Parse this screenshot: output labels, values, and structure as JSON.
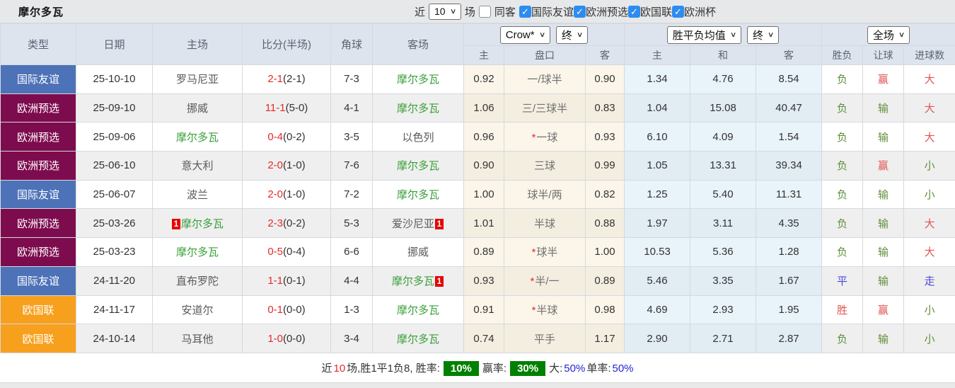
{
  "page": {
    "title": "摩尔多瓦"
  },
  "toolbar": {
    "near_label": "近",
    "near_select": "10",
    "games_label": "场",
    "same_away_label": "同客",
    "same_away_checked": false,
    "filters": [
      {
        "label": "国际友谊",
        "checked": true
      },
      {
        "label": "欧洲预选",
        "checked": true
      },
      {
        "label": "欧国联",
        "checked": true
      },
      {
        "label": "欧洲杯",
        "checked": true
      }
    ]
  },
  "table": {
    "headers": {
      "type": "类型",
      "date": "日期",
      "home": "主场",
      "score": "比分(半场)",
      "corner": "角球",
      "away": "客场",
      "ah_home": "主",
      "ah_line": "盘口",
      "ah_away": "客",
      "win": "主",
      "draw": "和",
      "lose": "客",
      "result": "胜负",
      "handicap_result": "让球",
      "goals": "进球数"
    },
    "selects": {
      "company": "Crow*",
      "company_period": "终",
      "avg": "胜平负均值",
      "avg_period": "终",
      "scope": "全场"
    },
    "rows": [
      {
        "type": "国际友谊",
        "date": "25-10-10",
        "home": "罗马尼亚",
        "home_green": false,
        "home_card": "",
        "score": "2-1",
        "half": "(2-1)",
        "corner": "7-3",
        "away": "摩尔多瓦",
        "away_green": true,
        "away_card": "",
        "ah_home": "0.92",
        "ah_star": false,
        "ah_line": "一/球半",
        "ah_away": "0.90",
        "w": "1.34",
        "d": "4.76",
        "l": "8.54",
        "res": "负",
        "res_c": "g",
        "hres": "赢",
        "hres_c": "r",
        "gres": "大",
        "gres_c": "r"
      },
      {
        "type": "欧洲预选",
        "date": "25-09-10",
        "home": "挪威",
        "home_green": false,
        "home_card": "",
        "score": "11-1",
        "half": "(5-0)",
        "corner": "4-1",
        "away": "摩尔多瓦",
        "away_green": true,
        "away_card": "",
        "ah_home": "1.06",
        "ah_star": false,
        "ah_line": "三/三球半",
        "ah_away": "0.83",
        "w": "1.04",
        "d": "15.08",
        "l": "40.47",
        "res": "负",
        "res_c": "g",
        "hres": "输",
        "hres_c": "g",
        "gres": "大",
        "gres_c": "r"
      },
      {
        "type": "欧洲预选",
        "date": "25-09-06",
        "home": "摩尔多瓦",
        "home_green": true,
        "home_card": "",
        "score": "0-4",
        "half": "(0-2)",
        "corner": "3-5",
        "away": "以色列",
        "away_green": false,
        "away_card": "",
        "ah_home": "0.96",
        "ah_star": true,
        "ah_line": "一球",
        "ah_away": "0.93",
        "w": "6.10",
        "d": "4.09",
        "l": "1.54",
        "res": "负",
        "res_c": "g",
        "hres": "输",
        "hres_c": "g",
        "gres": "大",
        "gres_c": "r"
      },
      {
        "type": "欧洲预选",
        "date": "25-06-10",
        "home": "意大利",
        "home_green": false,
        "home_card": "",
        "score": "2-0",
        "half": "(1-0)",
        "corner": "7-6",
        "away": "摩尔多瓦",
        "away_green": true,
        "away_card": "",
        "ah_home": "0.90",
        "ah_star": false,
        "ah_line": "三球",
        "ah_away": "0.99",
        "w": "1.05",
        "d": "13.31",
        "l": "39.34",
        "res": "负",
        "res_c": "g",
        "hres": "赢",
        "hres_c": "r",
        "gres": "小",
        "gres_c": "g"
      },
      {
        "type": "国际友谊",
        "date": "25-06-07",
        "home": "波兰",
        "home_green": false,
        "home_card": "",
        "score": "2-0",
        "half": "(1-0)",
        "corner": "7-2",
        "away": "摩尔多瓦",
        "away_green": true,
        "away_card": "",
        "ah_home": "1.00",
        "ah_star": false,
        "ah_line": "球半/两",
        "ah_away": "0.82",
        "w": "1.25",
        "d": "5.40",
        "l": "11.31",
        "res": "负",
        "res_c": "g",
        "hres": "输",
        "hres_c": "g",
        "gres": "小",
        "gres_c": "g"
      },
      {
        "type": "欧洲预选",
        "date": "25-03-26",
        "home": "摩尔多瓦",
        "home_green": true,
        "home_card": "1",
        "score": "2-3",
        "half": "(0-2)",
        "corner": "5-3",
        "away": "爱沙尼亚",
        "away_green": false,
        "away_card": "1",
        "ah_home": "1.01",
        "ah_star": false,
        "ah_line": "半球",
        "ah_away": "0.88",
        "w": "1.97",
        "d": "3.11",
        "l": "4.35",
        "res": "负",
        "res_c": "g",
        "hres": "输",
        "hres_c": "g",
        "gres": "大",
        "gres_c": "r"
      },
      {
        "type": "欧洲预选",
        "date": "25-03-23",
        "home": "摩尔多瓦",
        "home_green": true,
        "home_card": "",
        "score": "0-5",
        "half": "(0-4)",
        "corner": "6-6",
        "away": "挪威",
        "away_green": false,
        "away_card": "",
        "ah_home": "0.89",
        "ah_star": true,
        "ah_line": "球半",
        "ah_away": "1.00",
        "w": "10.53",
        "d": "5.36",
        "l": "1.28",
        "res": "负",
        "res_c": "g",
        "hres": "输",
        "hres_c": "g",
        "gres": "大",
        "gres_c": "r"
      },
      {
        "type": "国际友谊",
        "date": "24-11-20",
        "home": "直布罗陀",
        "home_green": false,
        "home_card": "",
        "score": "1-1",
        "half": "(0-1)",
        "corner": "4-4",
        "away": "摩尔多瓦",
        "away_green": true,
        "away_card": "1",
        "ah_home": "0.93",
        "ah_star": true,
        "ah_line": "半/一",
        "ah_away": "0.89",
        "w": "5.46",
        "d": "3.35",
        "l": "1.67",
        "res": "平",
        "res_c": "b",
        "hres": "输",
        "hres_c": "g",
        "gres": "走",
        "gres_c": "b"
      },
      {
        "type": "欧国联",
        "date": "24-11-17",
        "home": "安道尔",
        "home_green": false,
        "home_card": "",
        "score": "0-1",
        "half": "(0-0)",
        "corner": "1-3",
        "away": "摩尔多瓦",
        "away_green": true,
        "away_card": "",
        "ah_home": "0.91",
        "ah_star": true,
        "ah_line": "半球",
        "ah_away": "0.98",
        "w": "4.69",
        "d": "2.93",
        "l": "1.95",
        "res": "胜",
        "res_c": "r",
        "hres": "赢",
        "hres_c": "r",
        "gres": "小",
        "gres_c": "g"
      },
      {
        "type": "欧国联",
        "date": "24-10-14",
        "home": "马耳他",
        "home_green": false,
        "home_card": "",
        "score": "1-0",
        "half": "(0-0)",
        "corner": "3-4",
        "away": "摩尔多瓦",
        "away_green": true,
        "away_card": "",
        "ah_home": "0.74",
        "ah_star": false,
        "ah_line": "平手",
        "ah_away": "1.17",
        "w": "2.90",
        "d": "2.71",
        "l": "2.87",
        "res": "负",
        "res_c": "g",
        "hres": "输",
        "hres_c": "g",
        "gres": "小",
        "gres_c": "g"
      }
    ]
  },
  "footer": {
    "parts": [
      {
        "text": "近",
        "style": "plain"
      },
      {
        "text": "10",
        "style": "red"
      },
      {
        "text": "场,胜1平1负8, 胜率:",
        "style": "plain"
      },
      {
        "text": "10%",
        "style": "badge"
      },
      {
        "text": "赢率:",
        "style": "plain"
      },
      {
        "text": "30%",
        "style": "badge"
      },
      {
        "text": "大:",
        "style": "plain"
      },
      {
        "text": "50%",
        "style": "blue"
      },
      {
        "text": "单率:",
        "style": "plain"
      },
      {
        "text": "50%",
        "style": "blue"
      }
    ]
  },
  "colors": {
    "types": {
      "国际友谊": "#4d72b8",
      "欧洲预选": "#7d0c4e",
      "欧国联": "#f7a01d"
    },
    "team_green": "#3aa03a",
    "score_red": "#e42b2b",
    "result_red": "#e05555",
    "result_green": "#5e8f3c",
    "result_blue": "#4a4ae0",
    "badge_green": "#008000",
    "checkbox_blue": "#2e8cf0"
  }
}
